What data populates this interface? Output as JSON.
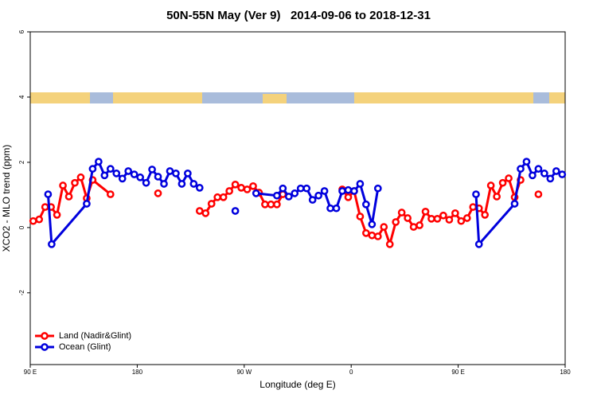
{
  "chart_data": {
    "type": "line",
    "title": "50N-55N May (Ver 9)   2014-09-06 to 2018-12-31",
    "xlabel": "Longitude (deg E)",
    "ylabel": "XCO2 - MLO trend (ppm)",
    "xlim": [
      90,
      540
    ],
    "xticks": [
      {
        "value": 90,
        "label": "90 E"
      },
      180,
      {
        "value": 270,
        "label": "90 W"
      },
      {
        "value": 360,
        "label": "0"
      },
      {
        "value": 450,
        "label": "90 E"
      },
      180
    ],
    "ylim": [
      -4.2,
      6
    ],
    "yticks": [
      6,
      4,
      2,
      0,
      -2
    ],
    "legend": "bottom-left",
    "series": [
      {
        "name": "Land (Nadir&Glint)",
        "color": "#ff0000",
        "x": [
          92.5,
          97.5,
          102.5,
          107.5,
          112.5,
          117.5,
          122.5,
          127.5,
          132.5,
          137.5,
          142.5,
          157.5,
          null,
          197.5,
          null,
          232.5,
          237.5,
          242.5,
          247.5,
          252.5,
          257.5,
          262.5,
          267.5,
          272.5,
          277.5,
          282.5,
          287.5,
          292.5,
          297.5,
          302.5,
          null,
          352.5,
          357.5,
          362.5,
          367.5,
          372.5,
          377.5,
          382.5,
          387.5,
          392.5,
          397.5,
          402.5,
          407.5,
          412.5,
          417.5,
          422.5,
          427.5,
          432.5,
          437.5,
          442.5,
          447.5,
          452.5,
          457.5,
          462.5,
          467.5,
          472.5,
          477.5,
          482.5,
          487.5,
          492.5,
          497.5,
          502.5,
          null,
          517.5
        ],
        "values": [
          0.2,
          0.25,
          0.63,
          0.63,
          0.39,
          1.29,
          0.95,
          1.37,
          1.54,
          0.9,
          1.46,
          1.02,
          null,
          1.05,
          null,
          0.51,
          0.44,
          0.73,
          0.93,
          0.93,
          1.12,
          1.32,
          1.22,
          1.17,
          1.27,
          1.07,
          0.71,
          0.71,
          0.71,
          1.02,
          null,
          1.17,
          0.93,
          1.12,
          0.34,
          -0.17,
          -0.24,
          -0.27,
          0.02,
          -0.51,
          0.17,
          0.46,
          0.29,
          0.02,
          0.07,
          0.49,
          0.27,
          0.27,
          0.37,
          0.24,
          0.44,
          0.2,
          0.29,
          0.63,
          0.59,
          0.39,
          1.29,
          0.95,
          1.37,
          1.51,
          0.93,
          1.46,
          null,
          1.02
        ]
      },
      {
        "name": "Ocean (Glint)",
        "color": "#0000dd",
        "x": [
          105,
          108,
          137.5,
          142.5,
          147.5,
          152.5,
          157.5,
          162.5,
          167.5,
          172.5,
          177.5,
          182.5,
          187.5,
          192.5,
          197.5,
          202.5,
          207.5,
          212.5,
          217.5,
          222.5,
          227.5,
          232.5,
          null,
          262.5,
          null,
          280,
          297.5,
          302.5,
          307.5,
          312.5,
          317.5,
          322.5,
          327.5,
          332.5,
          337.5,
          342.5,
          347.5,
          352.5,
          357.5,
          362.5,
          367.5,
          372.5,
          377.5,
          382.5,
          null,
          465,
          467.5,
          497.5,
          502.5,
          507.5,
          512.5,
          517.5,
          522.5,
          527.5,
          532.5,
          537.5
        ],
        "values": [
          1.02,
          -0.51,
          0.73,
          1.8,
          2.02,
          1.6,
          1.8,
          1.66,
          1.5,
          1.73,
          1.63,
          1.54,
          1.37,
          1.78,
          1.56,
          1.34,
          1.73,
          1.66,
          1.34,
          1.66,
          1.34,
          1.22,
          null,
          0.51,
          null,
          1.05,
          0.98,
          1.2,
          0.95,
          1.05,
          1.2,
          1.2,
          0.85,
          0.98,
          1.12,
          0.59,
          0.59,
          1.12,
          1.15,
          1.12,
          1.34,
          0.71,
          0.1,
          1.2,
          null,
          1.02,
          -0.51,
          0.73,
          1.8,
          2.02,
          1.6,
          1.8,
          1.66,
          1.5,
          1.73,
          1.63
        ]
      }
    ]
  }
}
